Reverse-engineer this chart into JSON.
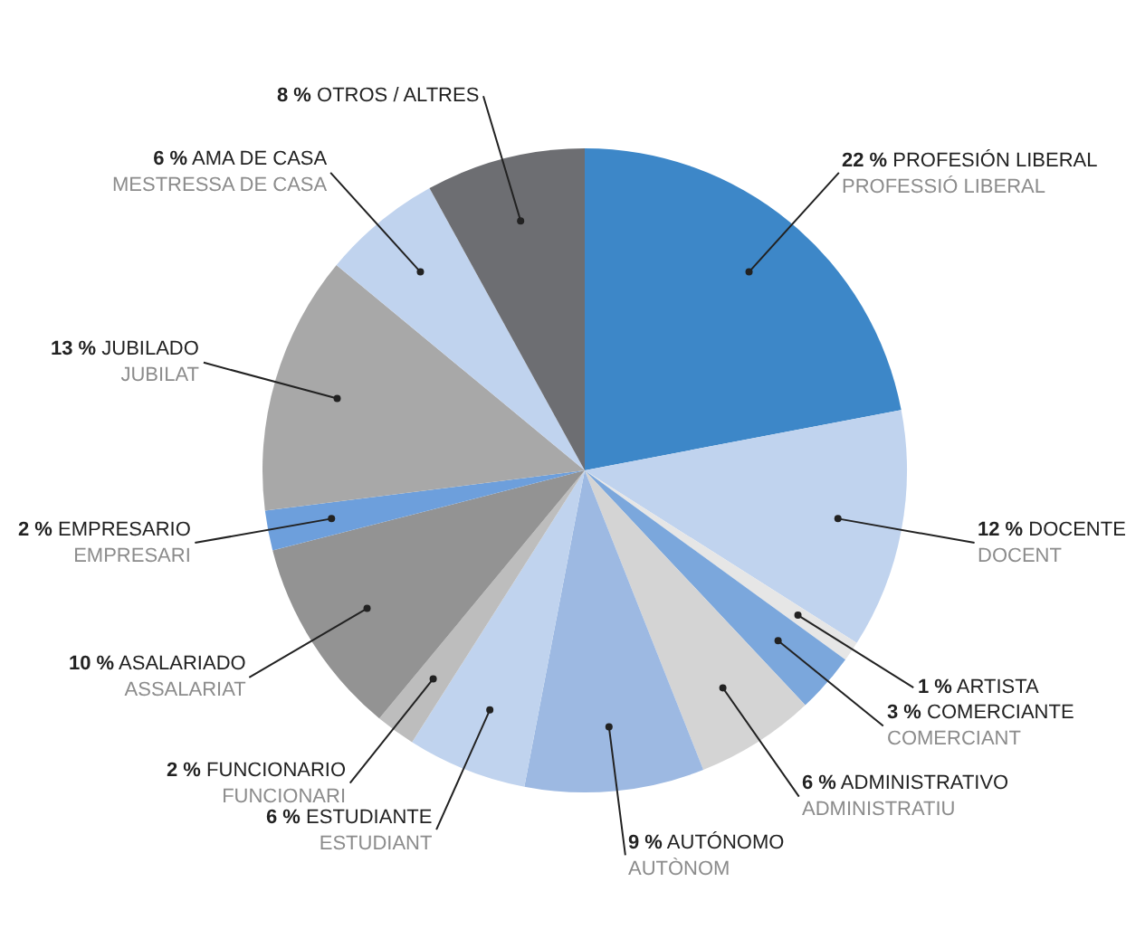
{
  "chart_data": {
    "type": "pie",
    "categories": [
      "PROFESIÓN LIBERAL\nPROFESSIÓ LIBERAL",
      "DOCENTE\nDOCENT",
      "ARTISTA",
      "COMERCIANTE\nCOMERCIANT",
      "ADMINISTRATIVO\nADMINISTRATIU",
      "AUTÓNOMO\nAUTÒNOM",
      "ESTUDIANTE\nESTUDIANT",
      "FUNCIONARIO\nFUNCIONARI",
      "ASALARIADO\nASSALARIAT",
      "EMPRESARIO\nEMPRESARI",
      "JUBILADO\nJUBILAT",
      "AMA DE CASA\nMESTRESSA DE CASA",
      "OTROS / ALTRES"
    ],
    "values": [
      22,
      12,
      1,
      3,
      6,
      9,
      6,
      2,
      10,
      2,
      13,
      6,
      8
    ],
    "value_labels": [
      "22 %",
      "12 %",
      "1 %",
      "3 %",
      "6 %",
      "9 %",
      "6 %",
      "2 %",
      "10 %",
      "2 %",
      "13 %",
      "6 %",
      "8 %"
    ],
    "colors": [
      "#3d87c8",
      "#c0d3ee",
      "#e6e6e6",
      "#7ba7dc",
      "#d4d4d4",
      "#9db9e2",
      "#c0d3ee",
      "#bdbdbd",
      "#939393",
      "#6d9fdc",
      "#a8a8a8",
      "#c0d3ee",
      "#6d6e72"
    ],
    "legend": false
  }
}
